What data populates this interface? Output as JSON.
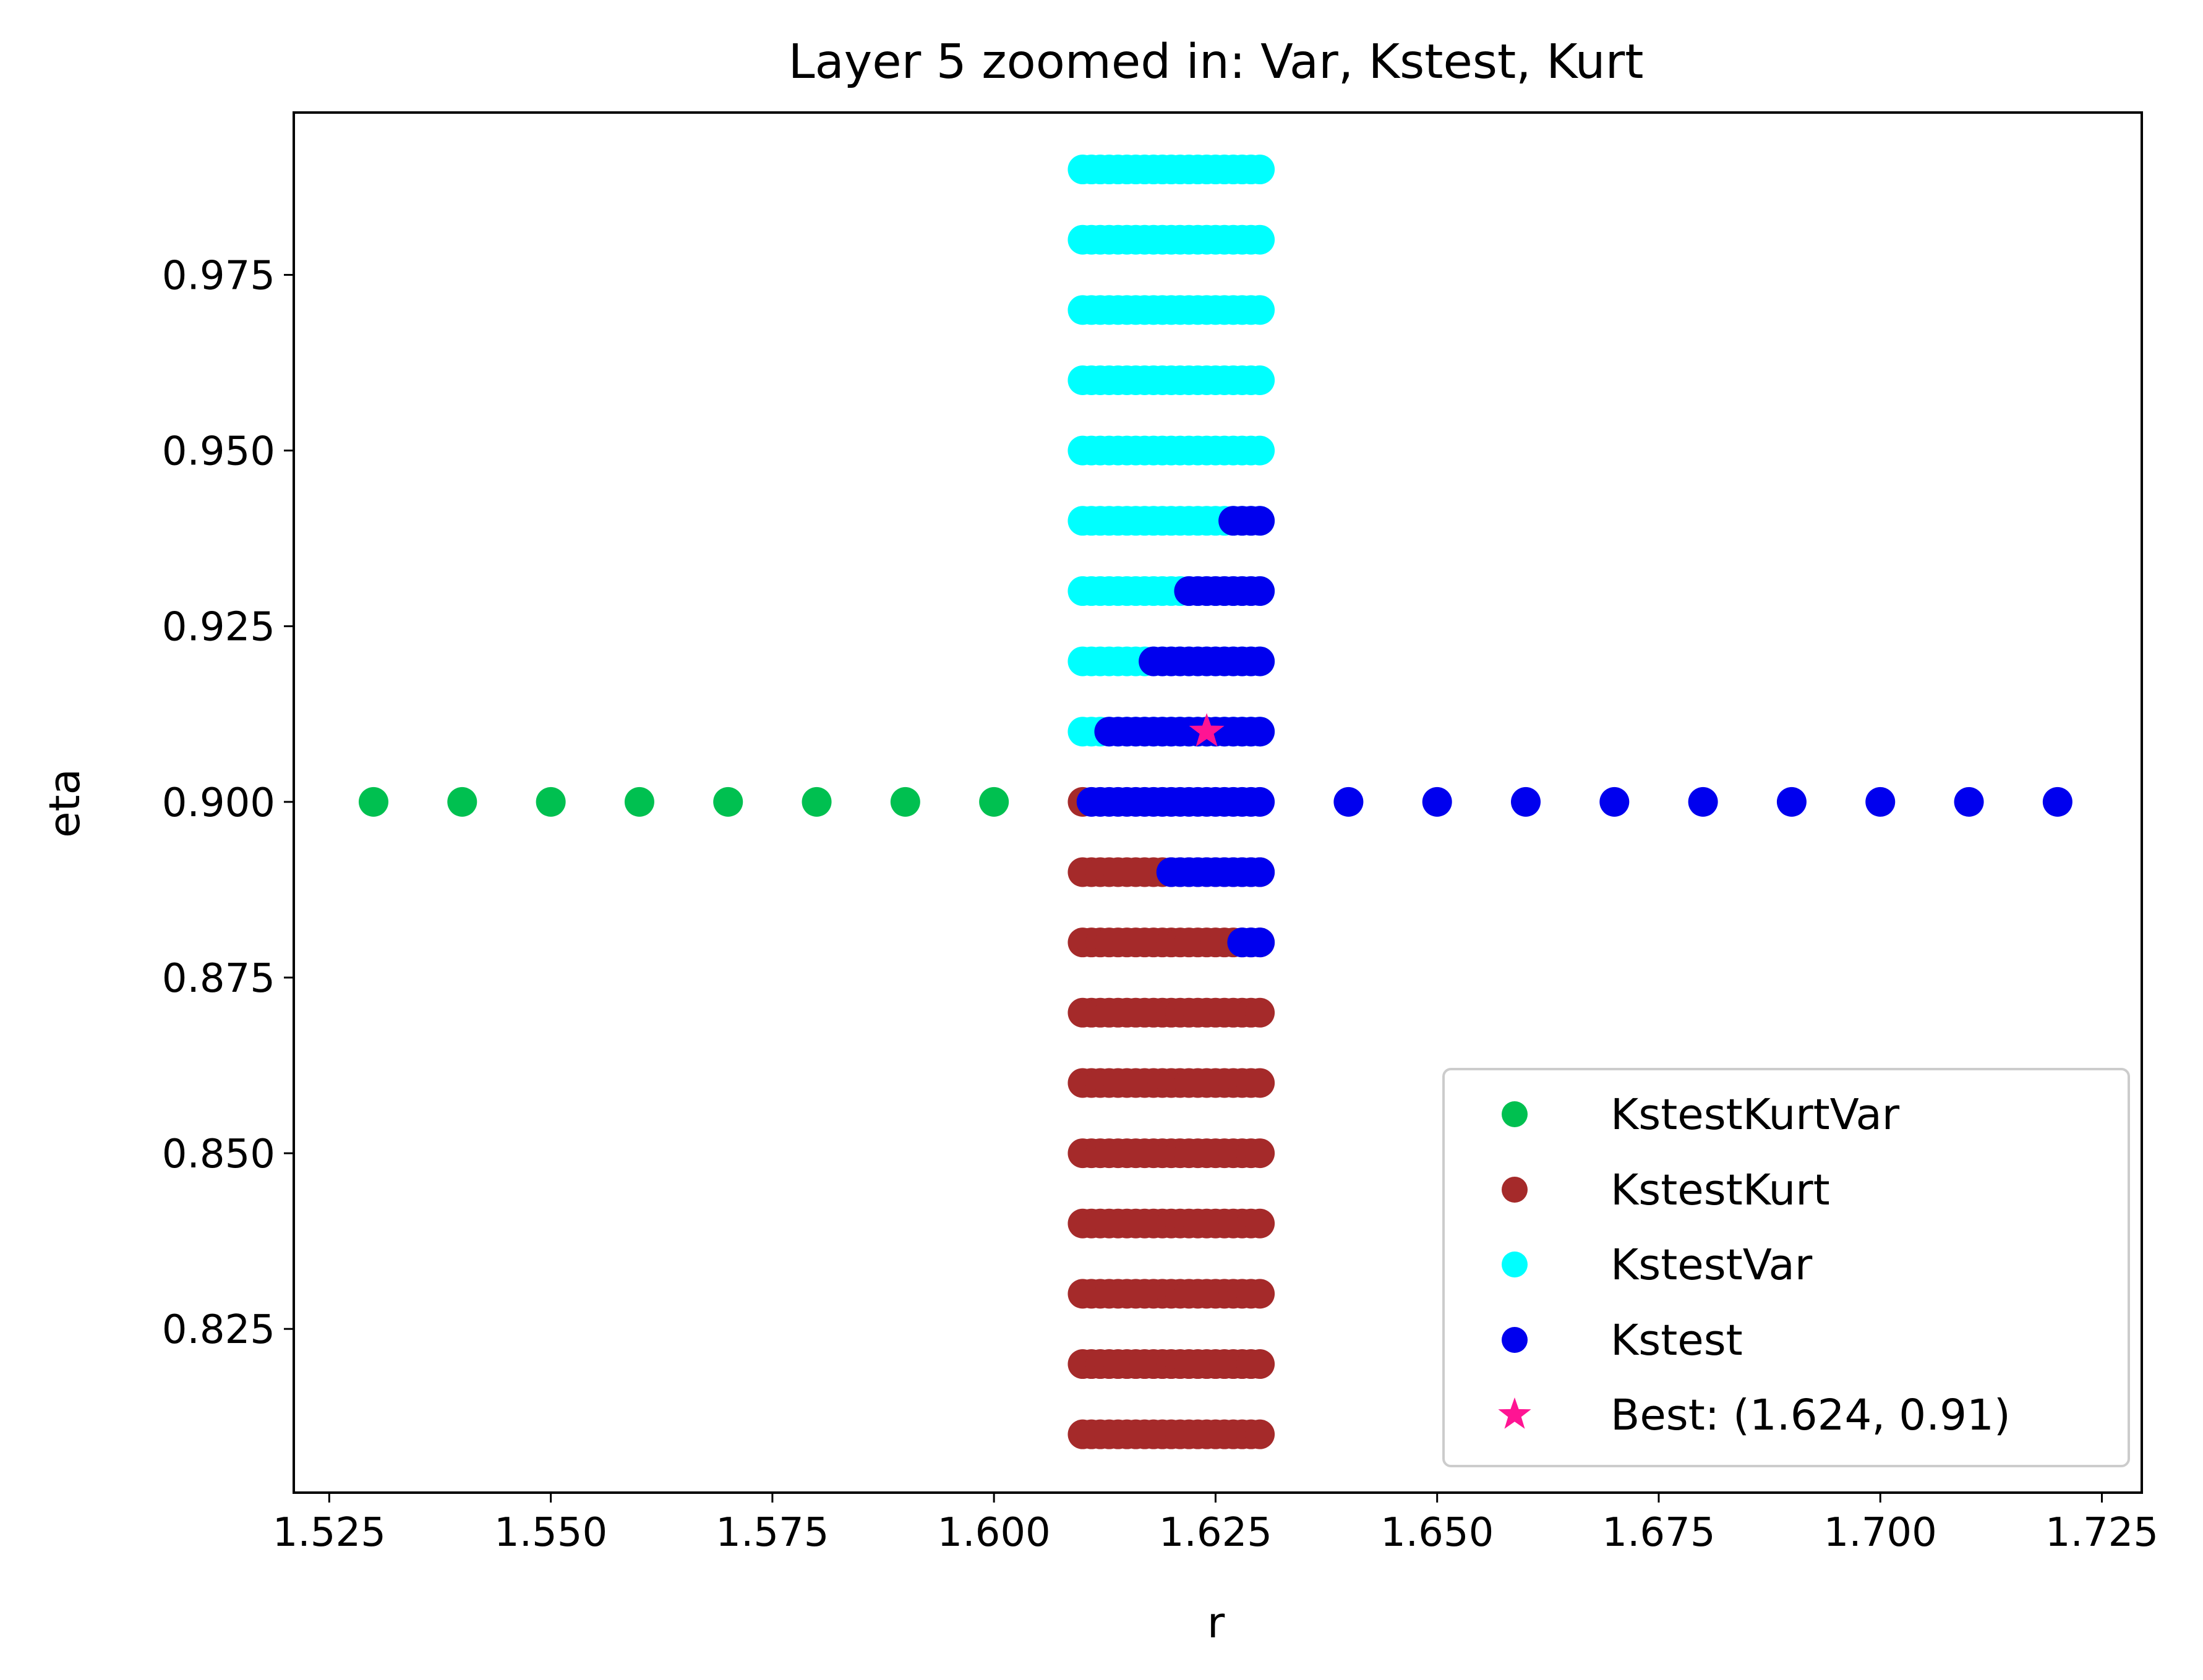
{
  "chart_data": {
    "type": "scatter",
    "title": "Layer 5 zoomed in: Var, Kstest, Kurt",
    "xlabel": "r",
    "ylabel": "eta",
    "xlim": [
      1.521,
      1.7295
    ],
    "ylim": [
      0.8017,
      0.9981
    ],
    "x_ticks": [
      "1.525",
      "1.550",
      "1.575",
      "1.600",
      "1.625",
      "1.650",
      "1.675",
      "1.700",
      "1.725"
    ],
    "y_ticks": [
      "0.825",
      "0.850",
      "0.875",
      "0.900",
      "0.925",
      "0.950",
      "0.975"
    ],
    "grid": false,
    "legend_position": "lower right",
    "r_grid": [
      1.61,
      1.611,
      1.612,
      1.613,
      1.614,
      1.615,
      1.616,
      1.617,
      1.618,
      1.619,
      1.62,
      1.621,
      1.622,
      1.623,
      1.624,
      1.625,
      1.626,
      1.627,
      1.628,
      1.629,
      1.63
    ],
    "series": [
      {
        "name": "KstestKurtVar",
        "color": "#00c050",
        "marker": "circle",
        "points": [
          [
            1.53,
            0.9
          ],
          [
            1.54,
            0.9
          ],
          [
            1.55,
            0.9
          ],
          [
            1.56,
            0.9
          ],
          [
            1.57,
            0.9
          ],
          [
            1.58,
            0.9
          ],
          [
            1.59,
            0.9
          ],
          [
            1.6,
            0.9
          ]
        ]
      },
      {
        "name": "KstestKurt",
        "color": "#a52a2a",
        "marker": "circle",
        "rows": [
          {
            "eta": 0.81,
            "r_min": 1.61,
            "r_max": 1.63
          },
          {
            "eta": 0.82,
            "r_min": 1.61,
            "r_max": 1.63
          },
          {
            "eta": 0.83,
            "r_min": 1.61,
            "r_max": 1.63
          },
          {
            "eta": 0.84,
            "r_min": 1.61,
            "r_max": 1.63
          },
          {
            "eta": 0.85,
            "r_min": 1.61,
            "r_max": 1.63
          },
          {
            "eta": 0.86,
            "r_min": 1.61,
            "r_max": 1.63
          },
          {
            "eta": 0.87,
            "r_min": 1.61,
            "r_max": 1.63
          },
          {
            "eta": 0.88,
            "r_min": 1.61,
            "r_max": 1.63
          },
          {
            "eta": 0.89,
            "r_min": 1.61,
            "r_max": 1.63
          },
          {
            "eta": 0.9,
            "r_min": 1.61,
            "r_max": 1.61
          }
        ]
      },
      {
        "name": "KstestVar",
        "color": "#00ffff",
        "marker": "circle",
        "rows": [
          {
            "eta": 0.91,
            "r_min": 1.61,
            "r_max": 1.63
          },
          {
            "eta": 0.92,
            "r_min": 1.61,
            "r_max": 1.63
          },
          {
            "eta": 0.93,
            "r_min": 1.61,
            "r_max": 1.63
          },
          {
            "eta": 0.94,
            "r_min": 1.61,
            "r_max": 1.63
          },
          {
            "eta": 0.95,
            "r_min": 1.61,
            "r_max": 1.63
          },
          {
            "eta": 0.96,
            "r_min": 1.61,
            "r_max": 1.63
          },
          {
            "eta": 0.97,
            "r_min": 1.61,
            "r_max": 1.63
          },
          {
            "eta": 0.98,
            "r_min": 1.61,
            "r_max": 1.63
          },
          {
            "eta": 0.99,
            "r_min": 1.61,
            "r_max": 1.63
          }
        ]
      },
      {
        "name": "Kstest",
        "color": "#0000ee",
        "marker": "circle",
        "rows": [
          {
            "eta": 0.88,
            "r_min": 1.628,
            "r_max": 1.63
          },
          {
            "eta": 0.89,
            "r_min": 1.62,
            "r_max": 1.63
          },
          {
            "eta": 0.9,
            "r_min": 1.611,
            "r_max": 1.63
          },
          {
            "eta": 0.91,
            "r_min": 1.613,
            "r_max": 1.63
          },
          {
            "eta": 0.92,
            "r_min": 1.618,
            "r_max": 1.63
          },
          {
            "eta": 0.93,
            "r_min": 1.622,
            "r_max": 1.63
          },
          {
            "eta": 0.94,
            "r_min": 1.627,
            "r_max": 1.63
          }
        ],
        "points": [
          [
            1.64,
            0.9
          ],
          [
            1.65,
            0.9
          ],
          [
            1.66,
            0.9
          ],
          [
            1.67,
            0.9
          ],
          [
            1.68,
            0.9
          ],
          [
            1.69,
            0.9
          ],
          [
            1.7,
            0.9
          ],
          [
            1.71,
            0.9
          ],
          [
            1.72,
            0.9
          ]
        ]
      },
      {
        "name": "Best: (1.624, 0.91)",
        "color": "#ff1493",
        "marker": "star",
        "points": [
          [
            1.624,
            0.91
          ]
        ]
      }
    ]
  }
}
